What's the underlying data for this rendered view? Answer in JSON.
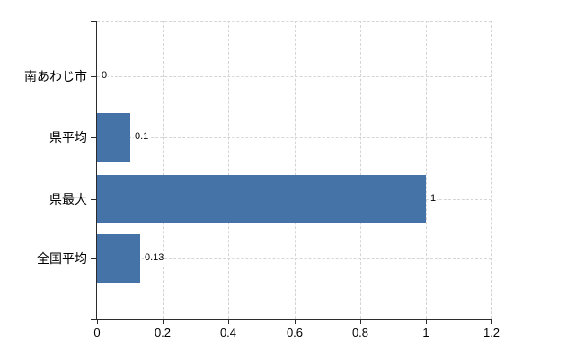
{
  "chart_data": {
    "type": "bar",
    "orientation": "horizontal",
    "title": "",
    "xlabel": "",
    "ylabel": "",
    "categories": [
      "南あわじ市",
      "県平均",
      "県最大",
      "全国平均"
    ],
    "values": [
      0,
      0.1,
      1,
      0.13
    ],
    "value_labels": [
      "0",
      "0.1",
      "1",
      "0.13"
    ],
    "xlim": [
      0,
      1.2
    ],
    "x_tick_values": [
      0,
      0.2,
      0.4,
      0.6,
      0.8,
      1,
      1.2
    ],
    "x_tick_labels": [
      "0",
      "0.2",
      "0.4",
      "0.6",
      "0.8",
      "1",
      "1.2"
    ],
    "grid": true,
    "grid_style": "dashed",
    "legend": false,
    "colors": {
      "bar": "#4572a7",
      "axis": "#2b2b2b",
      "grid": "#d4d4d4",
      "text": "#000000",
      "background": "#ffffff"
    }
  }
}
